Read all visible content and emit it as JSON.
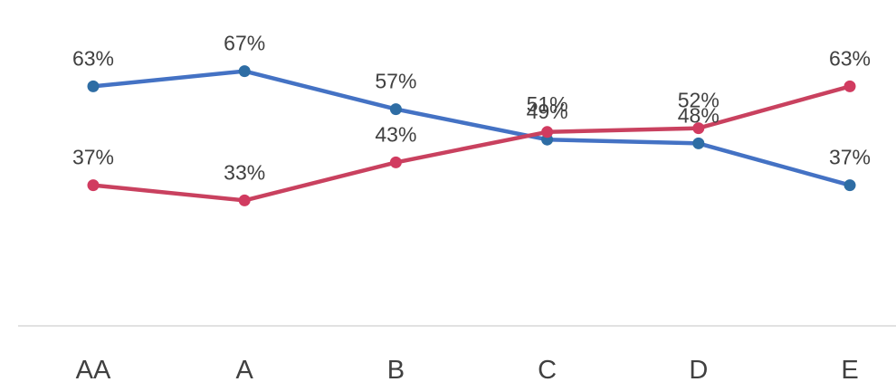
{
  "chart_data": {
    "type": "line",
    "categories": [
      "AA",
      "A",
      "B",
      "C",
      "D",
      "E"
    ],
    "series": [
      {
        "values": [
          63,
          67,
          57,
          49,
          48,
          37
        ],
        "labels": [
          "63%",
          "67%",
          "57%",
          "49%",
          "48%",
          "37%"
        ],
        "color": "#4472C4",
        "marker_color": "#2E6DA4"
      },
      {
        "values": [
          37,
          33,
          43,
          51,
          52,
          63
        ],
        "labels": [
          "37%",
          "33%",
          "43%",
          "51%",
          "52%",
          "63%"
        ],
        "color": "#C9415F",
        "marker_color": "#D13B60"
      }
    ],
    "ylim": [
      0,
      78
    ],
    "grid": false,
    "axis_line_color": "#D9D9D9",
    "label_color": "#404040"
  }
}
